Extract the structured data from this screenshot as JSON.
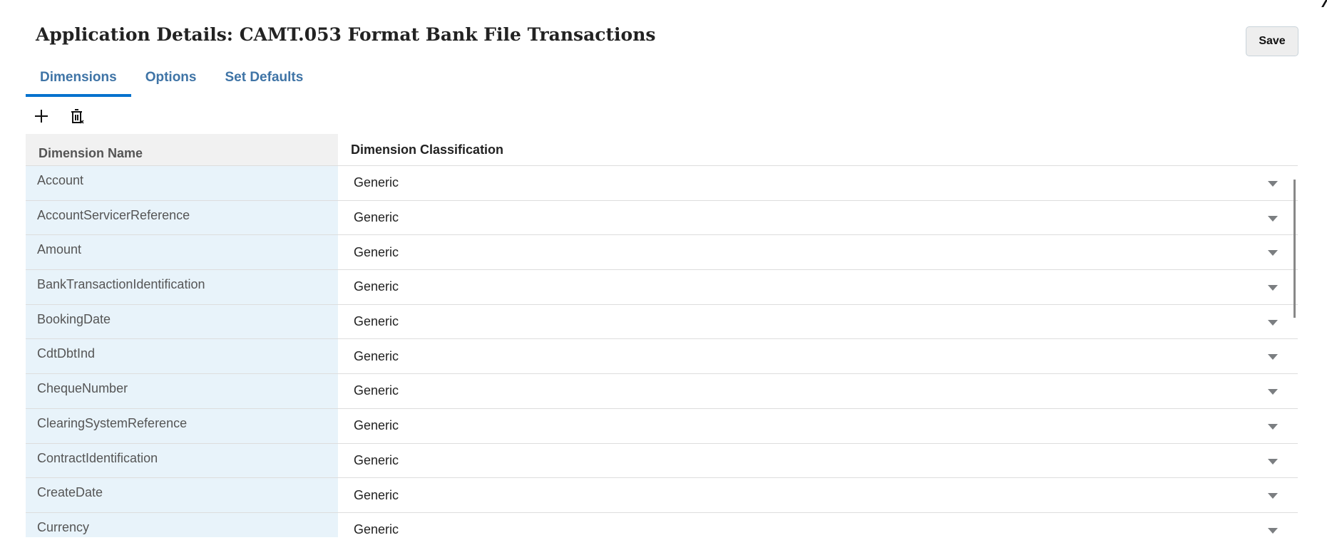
{
  "header": {
    "title": "Application Details: CAMT.053 Format Bank File Transactions",
    "save_label": "Save"
  },
  "tabs": [
    {
      "label": "Dimensions",
      "active": true
    },
    {
      "label": "Options"
    },
    {
      "label": "Set Defaults"
    }
  ],
  "toolbar": {
    "icons": [
      "plus-icon",
      "delete-icon"
    ]
  },
  "table": {
    "columns": [
      "Dimension Name",
      "Dimension Classification"
    ],
    "rows": [
      {
        "name": "Account",
        "classification": "Generic"
      },
      {
        "name": "AccountServicerReference",
        "classification": "Generic"
      },
      {
        "name": "Amount",
        "classification": "Generic"
      },
      {
        "name": "BankTransactionIdentification",
        "classification": "Generic"
      },
      {
        "name": "BookingDate",
        "classification": "Generic"
      },
      {
        "name": "CdtDbtInd",
        "classification": "Generic"
      },
      {
        "name": "ChequeNumber",
        "classification": "Generic"
      },
      {
        "name": "ClearingSystemReference",
        "classification": "Generic"
      },
      {
        "name": "ContractIdentification",
        "classification": "Generic"
      },
      {
        "name": "CreateDate",
        "classification": "Generic"
      },
      {
        "name": "Currency",
        "classification": "Generic"
      }
    ]
  }
}
